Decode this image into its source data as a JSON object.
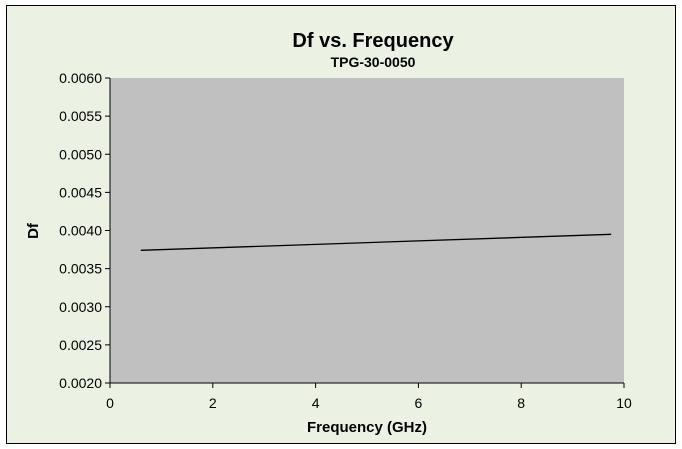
{
  "colors": {
    "chart_background": "#ebf2e4",
    "plot_background": "#c0c0c0",
    "line": "#000000"
  },
  "chart_data": {
    "type": "line",
    "title": "Df vs. Frequency",
    "subtitle": "TPG-30-0050",
    "xlabel": "Frequency (GHz)",
    "ylabel": "Df",
    "xlim": [
      0,
      10
    ],
    "ylim": [
      0.002,
      0.006
    ],
    "x_ticks": [
      0,
      2,
      4,
      6,
      8,
      10
    ],
    "x_tick_labels": [
      "0",
      "2",
      "4",
      "6",
      "8",
      "10"
    ],
    "y_ticks": [
      0.002,
      0.0025,
      0.003,
      0.0035,
      0.004,
      0.0045,
      0.005,
      0.0055,
      0.006
    ],
    "y_tick_labels": [
      "0.0020",
      "0.0025",
      "0.0030",
      "0.0035",
      "0.0040",
      "0.0045",
      "0.0050",
      "0.0055",
      "0.0060"
    ],
    "grid": false,
    "legend": "none",
    "series": [
      {
        "x": [
          0.6,
          9.75
        ],
        "y": [
          0.00374,
          0.00395
        ]
      }
    ]
  }
}
